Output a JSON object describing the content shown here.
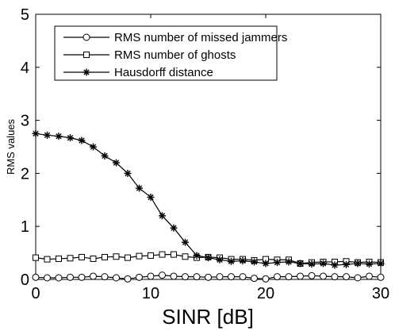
{
  "chart_data": {
    "type": "line",
    "title": "",
    "xlabel": "SINR [dB]",
    "ylabel": "RMS values",
    "xlim": [
      0,
      30
    ],
    "ylim": [
      0,
      5
    ],
    "xticks": [
      0,
      10,
      20,
      30
    ],
    "yticks": [
      0,
      1,
      2,
      3,
      4,
      5
    ],
    "grid": false,
    "legend_position": "top-center",
    "x": [
      0,
      1,
      2,
      3,
      4,
      5,
      6,
      7,
      8,
      9,
      10,
      11,
      12,
      13,
      14,
      15,
      16,
      17,
      18,
      19,
      20,
      21,
      22,
      23,
      24,
      25,
      26,
      27,
      28,
      29,
      30
    ],
    "series": [
      {
        "name": "RMS number of missed jammers",
        "marker": "circle",
        "values": [
          0.04,
          0.03,
          0.03,
          0.04,
          0.04,
          0.06,
          0.05,
          0.03,
          0.01,
          0.04,
          0.06,
          0.08,
          0.06,
          0.05,
          0.05,
          0.04,
          0.05,
          0.05,
          0.05,
          0.02,
          0.01,
          0.05,
          0.05,
          0.06,
          0.07,
          0.06,
          0.05,
          0.05,
          0.03,
          0.06,
          0.04
        ]
      },
      {
        "name": "RMS number of ghosts",
        "marker": "square",
        "values": [
          0.41,
          0.38,
          0.39,
          0.4,
          0.42,
          0.39,
          0.42,
          0.43,
          0.41,
          0.44,
          0.45,
          0.47,
          0.47,
          0.43,
          0.41,
          0.42,
          0.41,
          0.38,
          0.38,
          0.36,
          0.38,
          0.37,
          0.37,
          0.3,
          0.32,
          0.33,
          0.33,
          0.34,
          0.32,
          0.33,
          0.32
        ]
      },
      {
        "name": "Hausdorff distance",
        "marker": "asterisk",
        "values": [
          2.75,
          2.72,
          2.7,
          2.67,
          2.62,
          2.5,
          2.33,
          2.2,
          2.0,
          1.72,
          1.55,
          1.2,
          0.97,
          0.7,
          0.45,
          0.41,
          0.37,
          0.34,
          0.35,
          0.33,
          0.3,
          0.32,
          0.33,
          0.3,
          0.29,
          0.3,
          0.27,
          0.28,
          0.3,
          0.29,
          0.3
        ]
      }
    ]
  }
}
